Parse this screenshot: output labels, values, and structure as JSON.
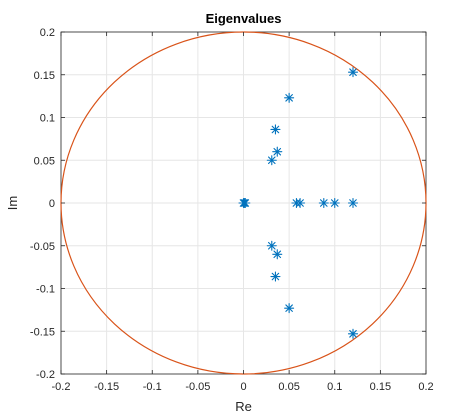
{
  "chart_data": {
    "type": "scatter",
    "title": "Eigenvalues",
    "xlabel": "Re",
    "ylabel": "Im",
    "xlim": [
      -0.2,
      0.2
    ],
    "ylim": [
      -0.2,
      0.2
    ],
    "grid": true,
    "xticks": [
      -0.2,
      -0.15,
      -0.1,
      -0.05,
      0,
      0.05,
      0.1,
      0.15,
      0.2
    ],
    "yticks": [
      -0.2,
      -0.15,
      -0.1,
      -0.05,
      0,
      0.05,
      0.1,
      0.15,
      0.2
    ],
    "xtick_labels": [
      "-0.2",
      "-0.15",
      "-0.1",
      "-0.05",
      "0",
      "0.05",
      "0.1",
      "0.15",
      "0.2"
    ],
    "ytick_labels": [
      "-0.2",
      "-0.15",
      "-0.1",
      "-0.05",
      "0",
      "0.05",
      "0.1",
      "0.15",
      "0.2"
    ],
    "series": [
      {
        "marker": "asterisk",
        "color": "#0072BD",
        "points": [
          {
            "x": 0,
            "y": 0
          },
          {
            "x": 0.001,
            "y": 0
          },
          {
            "x": 0.002,
            "y": 0
          },
          {
            "x": 0.12,
            "y": 0.153
          },
          {
            "x": 0.12,
            "y": -0.153
          },
          {
            "x": 0.05,
            "y": 0.123
          },
          {
            "x": 0.05,
            "y": -0.123
          },
          {
            "x": 0.035,
            "y": 0.086
          },
          {
            "x": 0.035,
            "y": -0.086
          },
          {
            "x": 0.037,
            "y": 0.06
          },
          {
            "x": 0.037,
            "y": -0.06
          },
          {
            "x": 0.031,
            "y": 0.05
          },
          {
            "x": 0.031,
            "y": -0.05
          },
          {
            "x": 0.058,
            "y": 0
          },
          {
            "x": 0.062,
            "y": 0
          },
          {
            "x": 0.088,
            "y": 0
          },
          {
            "x": 0.1,
            "y": 0
          },
          {
            "x": 0.12,
            "y": 0
          }
        ]
      },
      {
        "type": "line",
        "shape": "circle",
        "color": "#D95319",
        "center": [
          0,
          0
        ],
        "radius": 0.2
      }
    ]
  }
}
